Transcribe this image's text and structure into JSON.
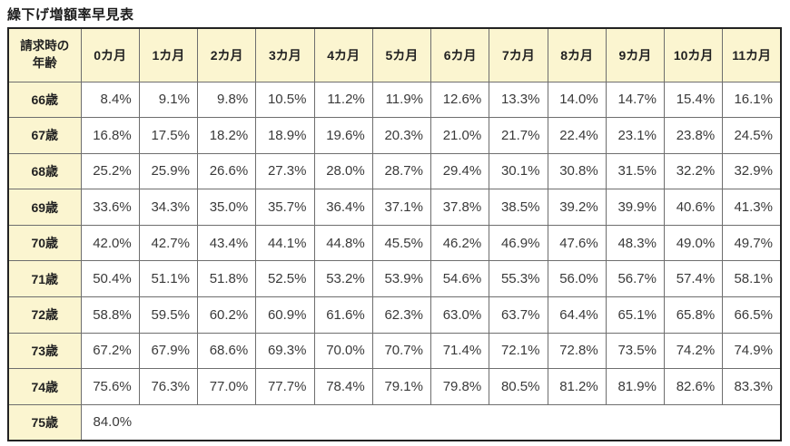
{
  "title": "繰下げ増額率早見表",
  "table": {
    "corner_header": "請求時の\n年齢",
    "month_headers": [
      "0カ月",
      "1カ月",
      "2カ月",
      "3カ月",
      "4カ月",
      "5カ月",
      "6カ月",
      "7カ月",
      "8カ月",
      "9カ月",
      "10カ月",
      "11カ月"
    ],
    "rows": [
      {
        "age": "66歳",
        "values": [
          "8.4%",
          "9.1%",
          "9.8%",
          "10.5%",
          "11.2%",
          "11.9%",
          "12.6%",
          "13.3%",
          "14.0%",
          "14.7%",
          "15.4%",
          "16.1%"
        ]
      },
      {
        "age": "67歳",
        "values": [
          "16.8%",
          "17.5%",
          "18.2%",
          "18.9%",
          "19.6%",
          "20.3%",
          "21.0%",
          "21.7%",
          "22.4%",
          "23.1%",
          "23.8%",
          "24.5%"
        ]
      },
      {
        "age": "68歳",
        "values": [
          "25.2%",
          "25.9%",
          "26.6%",
          "27.3%",
          "28.0%",
          "28.7%",
          "29.4%",
          "30.1%",
          "30.8%",
          "31.5%",
          "32.2%",
          "32.9%"
        ]
      },
      {
        "age": "69歳",
        "values": [
          "33.6%",
          "34.3%",
          "35.0%",
          "35.7%",
          "36.4%",
          "37.1%",
          "37.8%",
          "38.5%",
          "39.2%",
          "39.9%",
          "40.6%",
          "41.3%"
        ]
      },
      {
        "age": "70歳",
        "values": [
          "42.0%",
          "42.7%",
          "43.4%",
          "44.1%",
          "44.8%",
          "45.5%",
          "46.2%",
          "46.9%",
          "47.6%",
          "48.3%",
          "49.0%",
          "49.7%"
        ]
      },
      {
        "age": "71歳",
        "values": [
          "50.4%",
          "51.1%",
          "51.8%",
          "52.5%",
          "53.2%",
          "53.9%",
          "54.6%",
          "55.3%",
          "56.0%",
          "56.7%",
          "57.4%",
          "58.1%"
        ]
      },
      {
        "age": "72歳",
        "values": [
          "58.8%",
          "59.5%",
          "60.2%",
          "60.9%",
          "61.6%",
          "62.3%",
          "63.0%",
          "63.7%",
          "64.4%",
          "65.1%",
          "65.8%",
          "66.5%"
        ]
      },
      {
        "age": "73歳",
        "values": [
          "67.2%",
          "67.9%",
          "68.6%",
          "69.3%",
          "70.0%",
          "70.7%",
          "71.4%",
          "72.1%",
          "72.8%",
          "73.5%",
          "74.2%",
          "74.9%"
        ]
      },
      {
        "age": "74歳",
        "values": [
          "75.6%",
          "76.3%",
          "77.0%",
          "77.7%",
          "78.4%",
          "79.1%",
          "79.8%",
          "80.5%",
          "81.2%",
          "81.9%",
          "82.6%",
          "83.3%"
        ]
      },
      {
        "age": "75歳",
        "values": [
          "84.0%"
        ],
        "colspan": 12
      }
    ]
  },
  "colors": {
    "header_bg": "#fbf5d0",
    "inner_border": "#6e6e6e",
    "outer_border": "#222222",
    "value_text": "#3a3a3a"
  }
}
